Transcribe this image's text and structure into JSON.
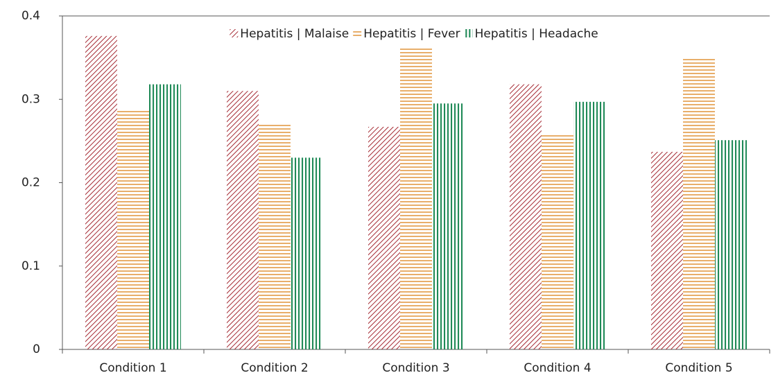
{
  "chart_data": {
    "type": "bar",
    "categories": [
      "Condition 1",
      "Condition 2",
      "Condition 3",
      "Condition 4",
      "Condition 5"
    ],
    "series": [
      {
        "name": "Hepatitis | Malaise",
        "color": "#a52a33",
        "pattern": "diagonal",
        "values": [
          0.376,
          0.31,
          0.267,
          0.318,
          0.237
        ]
      },
      {
        "name": "Hepatitis | Fever",
        "color": "#e39a45",
        "pattern": "horizontal",
        "values": [
          0.287,
          0.27,
          0.361,
          0.259,
          0.35
        ]
      },
      {
        "name": "Hepatitis | Headache",
        "color": "#1f8a57",
        "pattern": "vertical",
        "values": [
          0.318,
          0.23,
          0.295,
          0.297,
          0.251
        ]
      }
    ],
    "ylim": [
      0,
      0.4
    ],
    "yticks": [
      0,
      0.1,
      0.2,
      0.3,
      0.4
    ],
    "grid": false,
    "legend": "top"
  }
}
